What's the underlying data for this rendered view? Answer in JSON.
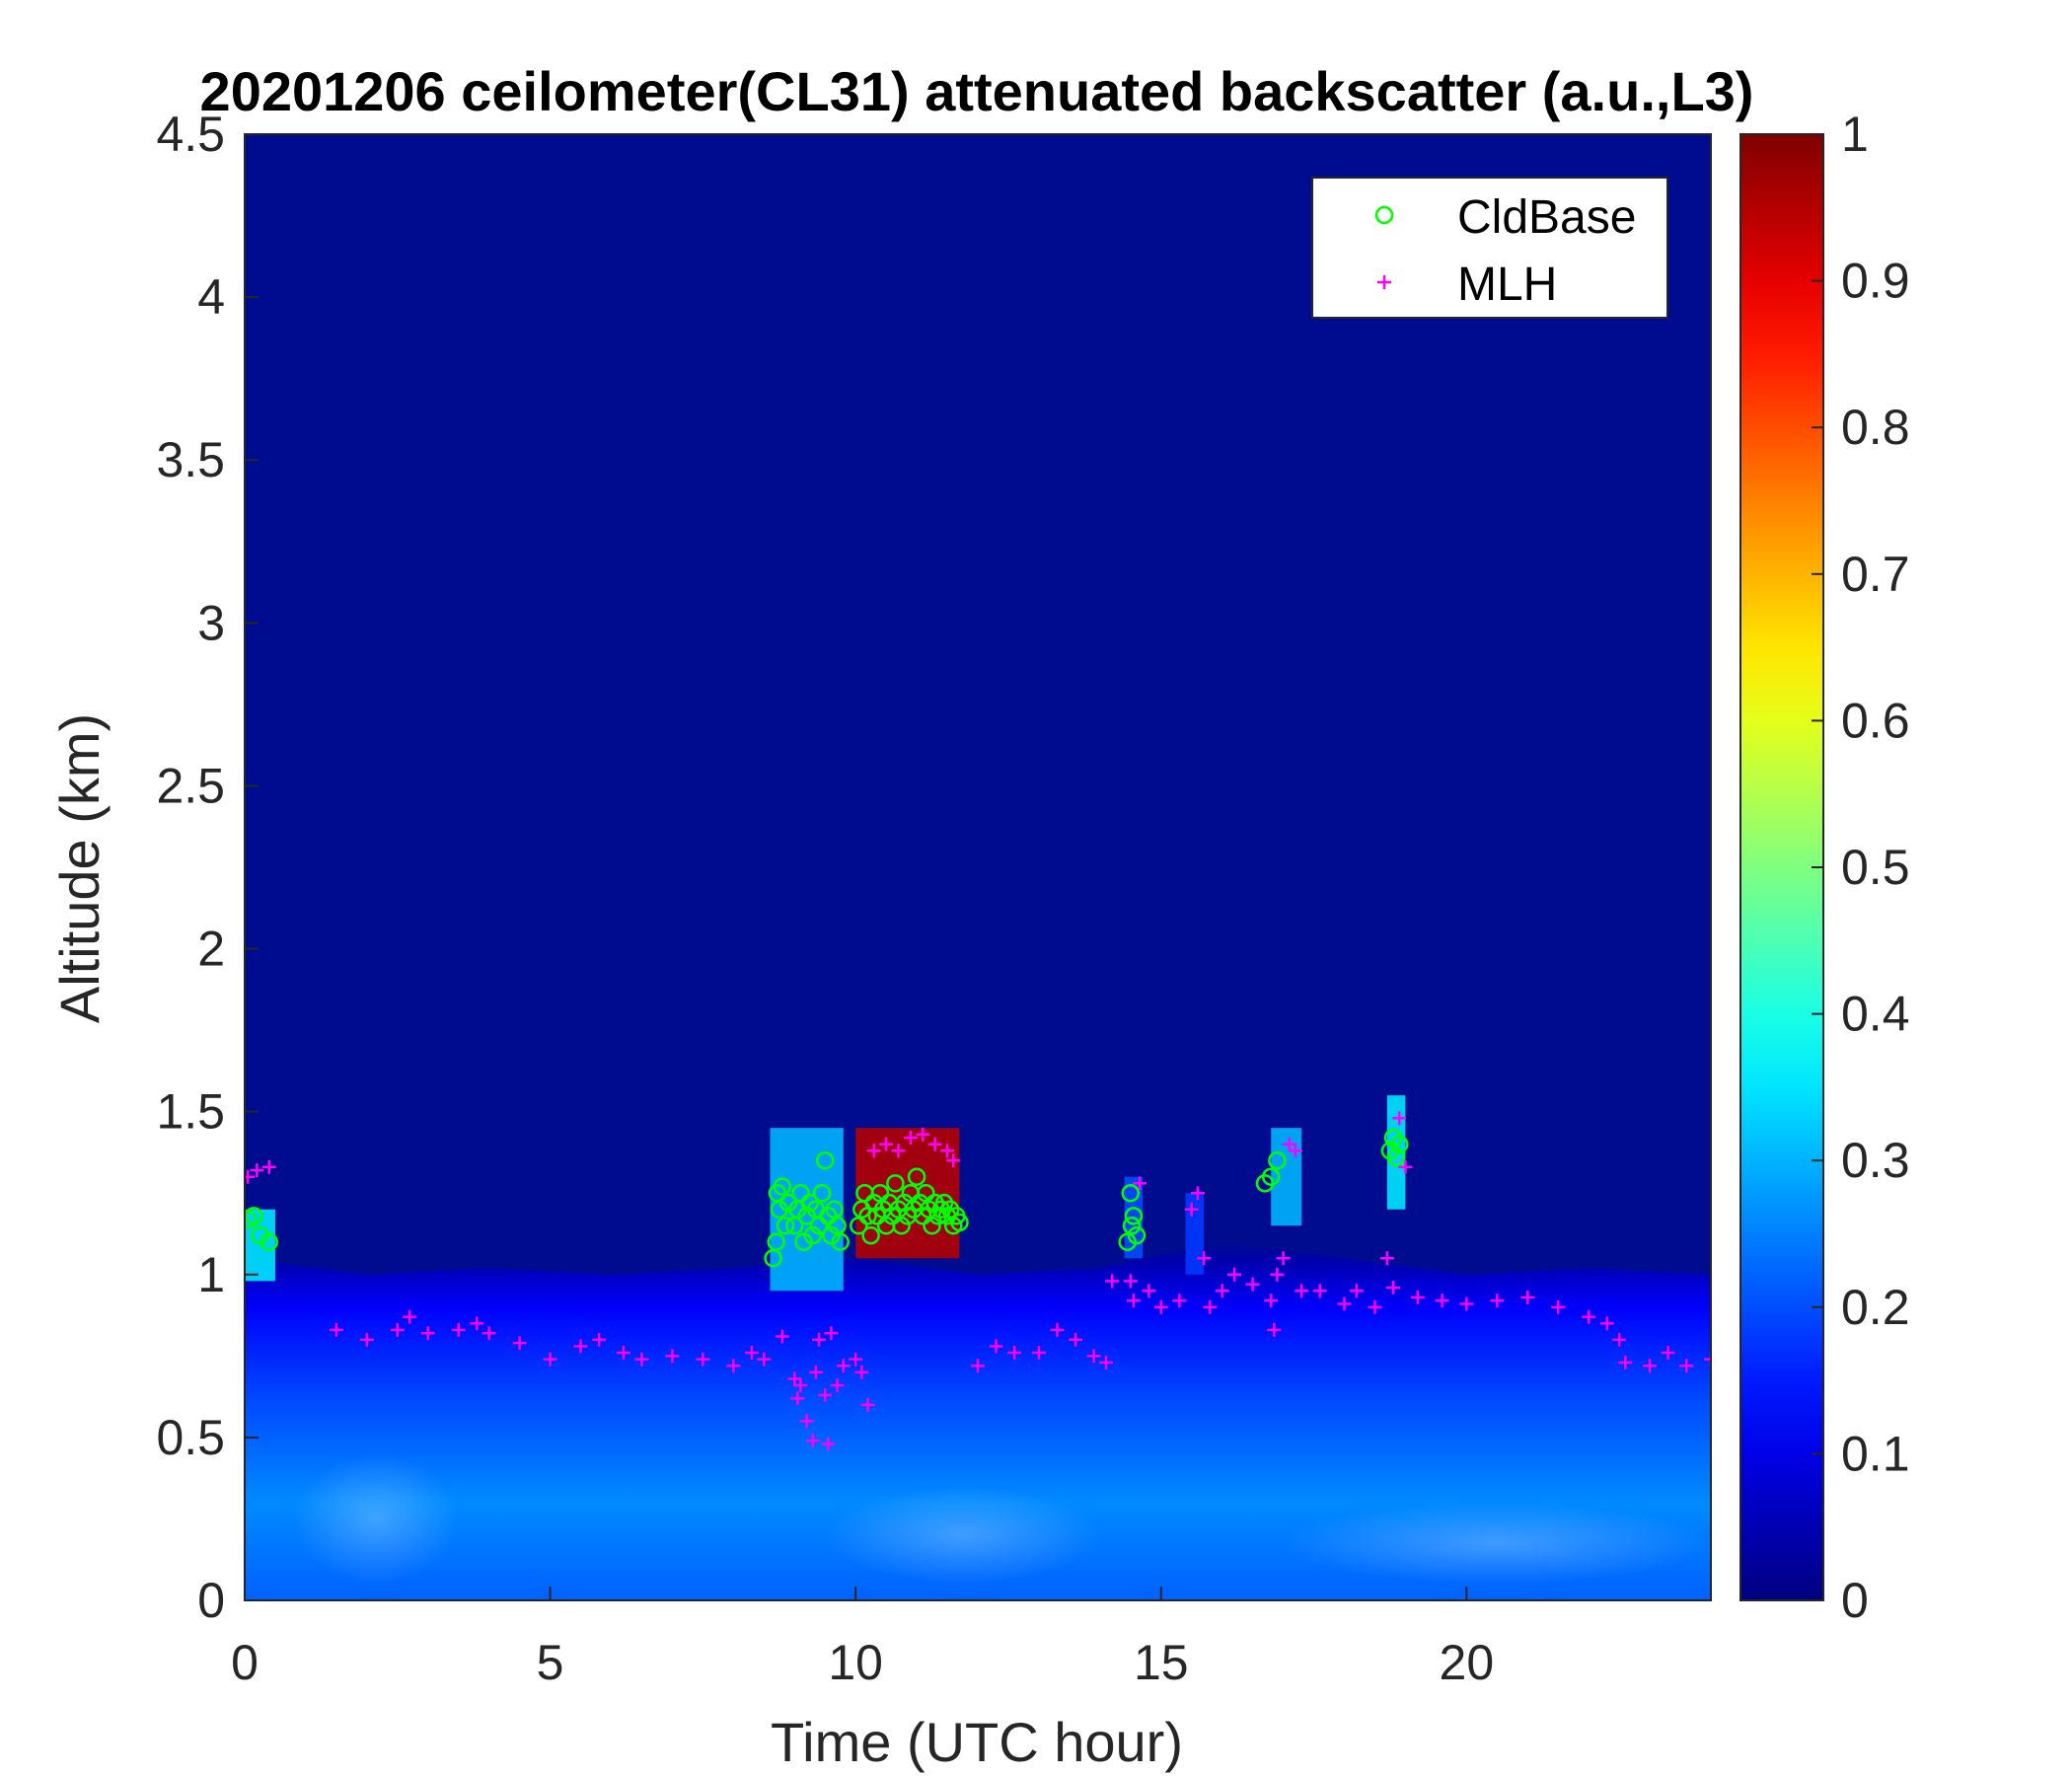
{
  "chart_data": {
    "type": "heatmap",
    "title": "20201206 ceilometer(CL31) attenuated backscatter (a.u.,L3)",
    "xlabel": "Time (UTC hour)",
    "ylabel": "Altitude (km)",
    "xlim": [
      0,
      24
    ],
    "ylim": [
      0,
      4.5
    ],
    "xticks": [
      "0",
      "5",
      "10",
      "15",
      "20"
    ],
    "xtick_values": [
      0,
      5,
      10,
      15,
      20
    ],
    "yticks": [
      "0",
      "0.5",
      "1",
      "1.5",
      "2",
      "2.5",
      "3",
      "3.5",
      "4",
      "4.5"
    ],
    "ytick_values": [
      0,
      0.5,
      1,
      1.5,
      2,
      2.5,
      3,
      3.5,
      4,
      4.5
    ],
    "colorbar": {
      "range": [
        0,
        1
      ],
      "colormap": "jet",
      "ticks": [
        "0",
        "0.1",
        "0.2",
        "0.3",
        "0.4",
        "0.5",
        "0.6",
        "0.7",
        "0.8",
        "0.9",
        "1"
      ],
      "tick_values": [
        0,
        0.1,
        0.2,
        0.3,
        0.4,
        0.5,
        0.6,
        0.7,
        0.8,
        0.9,
        1
      ]
    },
    "background": {
      "value": 0.02,
      "color": "#000c8f"
    },
    "boundary_layer": {
      "top_km": [
        [
          0,
          1.05
        ],
        [
          2,
          1.0
        ],
        [
          4,
          1.02
        ],
        [
          6,
          1.0
        ],
        [
          8,
          1.02
        ],
        [
          10,
          1.05
        ],
        [
          12,
          1.0
        ],
        [
          14,
          1.02
        ],
        [
          16,
          1.1
        ],
        [
          18,
          1.05
        ],
        [
          20,
          1.0
        ],
        [
          22,
          1.02
        ],
        [
          24,
          1.0
        ]
      ],
      "profile": [
        [
          0,
          0.22
        ],
        [
          0.3,
          0.26
        ],
        [
          0.6,
          0.2
        ],
        [
          0.9,
          0.12
        ],
        [
          1.05,
          0.04
        ]
      ]
    },
    "cloud_features": [
      {
        "x0": 0.0,
        "x1": 0.5,
        "y0": 0.98,
        "y1": 1.2,
        "value": 0.35
      },
      {
        "x0": 8.6,
        "x1": 9.8,
        "y0": 0.95,
        "y1": 1.45,
        "value": 0.3
      },
      {
        "x0": 10.0,
        "x1": 11.7,
        "y0": 1.05,
        "y1": 1.45,
        "value": 0.95
      },
      {
        "x0": 14.4,
        "x1": 14.7,
        "y0": 1.05,
        "y1": 1.3,
        "value": 0.2
      },
      {
        "x0": 15.4,
        "x1": 15.7,
        "y0": 1.0,
        "y1": 1.25,
        "value": 0.18
      },
      {
        "x0": 16.8,
        "x1": 17.3,
        "y0": 1.15,
        "y1": 1.45,
        "value": 0.3
      },
      {
        "x0": 18.7,
        "x1": 19.0,
        "y0": 1.2,
        "y1": 1.55,
        "value": 0.35
      }
    ],
    "series": [
      {
        "name": "CldBase",
        "marker": "circle",
        "color": "#00ff00",
        "points": [
          [
            0.05,
            1.17
          ],
          [
            0.15,
            1.18
          ],
          [
            0.25,
            1.12
          ],
          [
            0.4,
            1.1
          ],
          [
            8.65,
            1.05
          ],
          [
            8.7,
            1.1
          ],
          [
            8.72,
            1.25
          ],
          [
            8.75,
            1.2
          ],
          [
            8.8,
            1.27
          ],
          [
            8.85,
            1.15
          ],
          [
            8.9,
            1.22
          ],
          [
            9.0,
            1.15
          ],
          [
            9.05,
            1.2
          ],
          [
            9.1,
            1.25
          ],
          [
            9.15,
            1.1
          ],
          [
            9.2,
            1.18
          ],
          [
            9.25,
            1.22
          ],
          [
            9.3,
            1.12
          ],
          [
            9.35,
            1.2
          ],
          [
            9.4,
            1.15
          ],
          [
            9.45,
            1.25
          ],
          [
            9.5,
            1.35
          ],
          [
            9.55,
            1.18
          ],
          [
            9.6,
            1.12
          ],
          [
            9.65,
            1.2
          ],
          [
            9.7,
            1.15
          ],
          [
            9.75,
            1.1
          ],
          [
            10.05,
            1.15
          ],
          [
            10.1,
            1.2
          ],
          [
            10.15,
            1.25
          ],
          [
            10.2,
            1.18
          ],
          [
            10.25,
            1.12
          ],
          [
            10.3,
            1.22
          ],
          [
            10.35,
            1.18
          ],
          [
            10.4,
            1.25
          ],
          [
            10.45,
            1.2
          ],
          [
            10.5,
            1.15
          ],
          [
            10.55,
            1.22
          ],
          [
            10.6,
            1.18
          ],
          [
            10.65,
            1.28
          ],
          [
            10.7,
            1.2
          ],
          [
            10.75,
            1.15
          ],
          [
            10.8,
            1.22
          ],
          [
            10.85,
            1.18
          ],
          [
            10.9,
            1.25
          ],
          [
            10.95,
            1.2
          ],
          [
            11.0,
            1.3
          ],
          [
            11.05,
            1.22
          ],
          [
            11.1,
            1.18
          ],
          [
            11.15,
            1.25
          ],
          [
            11.2,
            1.2
          ],
          [
            11.25,
            1.15
          ],
          [
            11.3,
            1.22
          ],
          [
            11.35,
            1.18
          ],
          [
            11.4,
            1.2
          ],
          [
            11.45,
            1.22
          ],
          [
            11.5,
            1.18
          ],
          [
            11.55,
            1.2
          ],
          [
            11.6,
            1.15
          ],
          [
            11.65,
            1.18
          ],
          [
            11.7,
            1.16
          ],
          [
            14.45,
            1.1
          ],
          [
            14.5,
            1.25
          ],
          [
            14.52,
            1.15
          ],
          [
            14.55,
            1.18
          ],
          [
            14.6,
            1.12
          ],
          [
            16.7,
            1.28
          ],
          [
            16.8,
            1.3
          ],
          [
            16.9,
            1.35
          ],
          [
            18.75,
            1.38
          ],
          [
            18.8,
            1.42
          ],
          [
            18.85,
            1.36
          ],
          [
            18.9,
            1.4
          ]
        ]
      },
      {
        "name": "MLH",
        "marker": "plus",
        "color": "#ff00ff",
        "points": [
          [
            0.05,
            1.3
          ],
          [
            0.2,
            1.32
          ],
          [
            0.4,
            1.33
          ],
          [
            1.5,
            0.83
          ],
          [
            2.0,
            0.8
          ],
          [
            2.5,
            0.83
          ],
          [
            2.7,
            0.87
          ],
          [
            3.0,
            0.82
          ],
          [
            3.5,
            0.83
          ],
          [
            3.8,
            0.85
          ],
          [
            4.0,
            0.82
          ],
          [
            4.5,
            0.79
          ],
          [
            5.0,
            0.74
          ],
          [
            5.5,
            0.78
          ],
          [
            5.8,
            0.8
          ],
          [
            6.2,
            0.76
          ],
          [
            6.5,
            0.74
          ],
          [
            7.0,
            0.75
          ],
          [
            7.5,
            0.74
          ],
          [
            8.0,
            0.72
          ],
          [
            8.3,
            0.76
          ],
          [
            8.5,
            0.74
          ],
          [
            8.8,
            0.81
          ],
          [
            9.0,
            0.68
          ],
          [
            9.05,
            0.62
          ],
          [
            9.1,
            0.66
          ],
          [
            9.2,
            0.55
          ],
          [
            9.3,
            0.49
          ],
          [
            9.35,
            0.7
          ],
          [
            9.4,
            0.8
          ],
          [
            9.5,
            0.63
          ],
          [
            9.55,
            0.48
          ],
          [
            9.6,
            0.82
          ],
          [
            9.7,
            0.66
          ],
          [
            9.8,
            0.72
          ],
          [
            10.0,
            0.74
          ],
          [
            10.1,
            0.7
          ],
          [
            10.2,
            0.6
          ],
          [
            10.3,
            1.38
          ],
          [
            10.5,
            1.4
          ],
          [
            10.7,
            1.38
          ],
          [
            10.9,
            1.42
          ],
          [
            11.1,
            1.43
          ],
          [
            11.3,
            1.4
          ],
          [
            11.5,
            1.38
          ],
          [
            11.6,
            1.35
          ],
          [
            12.0,
            0.72
          ],
          [
            12.3,
            0.78
          ],
          [
            12.6,
            0.76
          ],
          [
            13.0,
            0.76
          ],
          [
            13.3,
            0.83
          ],
          [
            13.6,
            0.8
          ],
          [
            13.9,
            0.75
          ],
          [
            14.1,
            0.73
          ],
          [
            14.2,
            0.98
          ],
          [
            14.5,
            0.98
          ],
          [
            14.55,
            0.92
          ],
          [
            14.65,
            1.28
          ],
          [
            14.8,
            0.95
          ],
          [
            15.0,
            0.9
          ],
          [
            15.3,
            0.92
          ],
          [
            15.5,
            1.2
          ],
          [
            15.6,
            1.25
          ],
          [
            15.7,
            1.05
          ],
          [
            15.8,
            0.9
          ],
          [
            16.0,
            0.95
          ],
          [
            16.2,
            1.0
          ],
          [
            16.5,
            0.97
          ],
          [
            16.8,
            0.92
          ],
          [
            16.9,
            1.0
          ],
          [
            16.85,
            0.83
          ],
          [
            17.0,
            1.05
          ],
          [
            17.1,
            1.4
          ],
          [
            17.2,
            1.38
          ],
          [
            17.3,
            0.95
          ],
          [
            17.6,
            0.95
          ],
          [
            18.0,
            0.91
          ],
          [
            18.2,
            0.95
          ],
          [
            18.5,
            0.9
          ],
          [
            18.7,
            1.05
          ],
          [
            18.8,
            0.96
          ],
          [
            18.9,
            1.48
          ],
          [
            19.0,
            1.33
          ],
          [
            19.2,
            0.93
          ],
          [
            19.6,
            0.92
          ],
          [
            20.0,
            0.91
          ],
          [
            20.5,
            0.92
          ],
          [
            21.0,
            0.93
          ],
          [
            21.5,
            0.9
          ],
          [
            22.0,
            0.87
          ],
          [
            22.3,
            0.85
          ],
          [
            22.5,
            0.8
          ],
          [
            22.6,
            0.73
          ],
          [
            23.0,
            0.72
          ],
          [
            23.3,
            0.76
          ],
          [
            23.6,
            0.72
          ],
          [
            24.0,
            0.74
          ]
        ]
      }
    ],
    "legend": {
      "position": "top-right",
      "entries": [
        "CldBase",
        "MLH"
      ]
    }
  }
}
